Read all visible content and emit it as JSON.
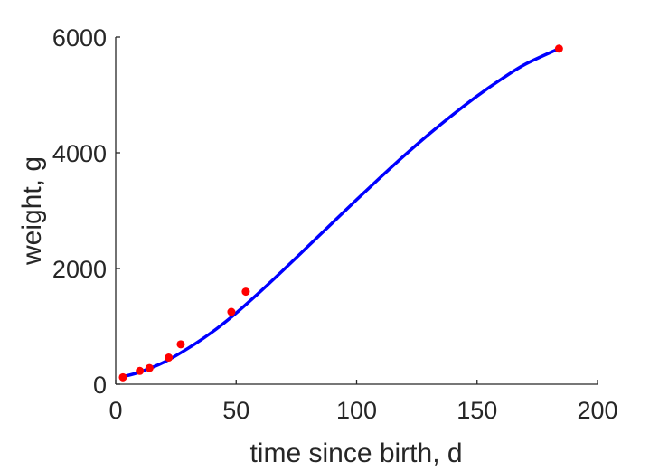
{
  "chart_data": {
    "type": "scatter",
    "xlabel": "time since birth, d",
    "ylabel": "weight, g",
    "xlim": [
      0,
      200
    ],
    "ylim": [
      0,
      6000
    ],
    "xticks": [
      0,
      50,
      100,
      150,
      200
    ],
    "xtick_labels": [
      "0",
      "50",
      "100",
      "150",
      "200"
    ],
    "yticks": [
      0,
      2000,
      4000,
      6000
    ],
    "ytick_labels": [
      "0",
      "2000",
      "4000",
      "6000"
    ],
    "grid": false,
    "box": false,
    "series": [
      {
        "type": "scatter",
        "color": "#ff0000",
        "marker": "circle",
        "points": [
          {
            "x": 3,
            "y": 120
          },
          {
            "x": 10,
            "y": 230
          },
          {
            "x": 14,
            "y": 280
          },
          {
            "x": 22,
            "y": 460
          },
          {
            "x": 27,
            "y": 690
          },
          {
            "x": 48,
            "y": 1250
          },
          {
            "x": 54,
            "y": 1600
          },
          {
            "x": 184,
            "y": 5800
          }
        ]
      },
      {
        "type": "line",
        "color": "#0000ff",
        "points": [
          {
            "x": 3,
            "y": 130
          },
          {
            "x": 10,
            "y": 210
          },
          {
            "x": 20,
            "y": 380
          },
          {
            "x": 30,
            "y": 620
          },
          {
            "x": 40,
            "y": 900
          },
          {
            "x": 50,
            "y": 1230
          },
          {
            "x": 60,
            "y": 1600
          },
          {
            "x": 70,
            "y": 1990
          },
          {
            "x": 80,
            "y": 2390
          },
          {
            "x": 90,
            "y": 2790
          },
          {
            "x": 100,
            "y": 3190
          },
          {
            "x": 110,
            "y": 3580
          },
          {
            "x": 120,
            "y": 3960
          },
          {
            "x": 130,
            "y": 4320
          },
          {
            "x": 140,
            "y": 4660
          },
          {
            "x": 150,
            "y": 4980
          },
          {
            "x": 160,
            "y": 5270
          },
          {
            "x": 170,
            "y": 5530
          },
          {
            "x": 184,
            "y": 5800
          }
        ]
      }
    ]
  }
}
